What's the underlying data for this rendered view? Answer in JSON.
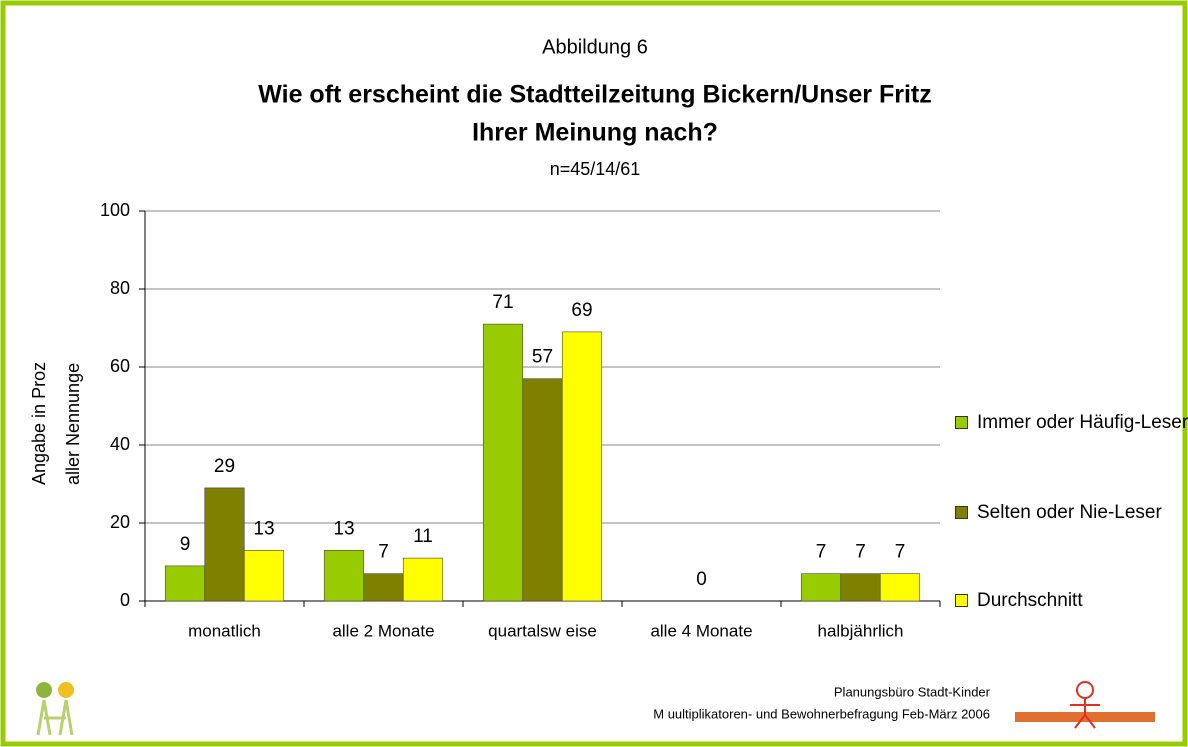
{
  "chart_data": {
    "type": "bar",
    "caption": "Abbildung 6",
    "title": [
      "Wie oft erscheint die Stadtteilzeitung Bickern/Unser Fritz",
      "Ihrer Meinung nach?"
    ],
    "subtitle": "n=45/14/61",
    "y_label": [
      "Angabe in Proz",
      "aller Nennunge"
    ],
    "categories": [
      "monatlich",
      "alle 2 Monate",
      "quartalsw eise",
      "alle 4 Monate",
      "halbjährlich"
    ],
    "series": [
      {
        "name": "Immer oder Häufig-Leser",
        "color": "#99cc00",
        "values": [
          9,
          13,
          71,
          null,
          7
        ]
      },
      {
        "name": "Selten oder Nie-Leser",
        "color": "#808000",
        "values": [
          29,
          7,
          57,
          0,
          7
        ]
      },
      {
        "name": "Durchschnitt",
        "color": "#ffff00",
        "values": [
          13,
          11,
          69,
          null,
          7
        ]
      }
    ],
    "ylim": [
      0,
      100
    ],
    "yticks": [
      0,
      20,
      40,
      60,
      80,
      100
    ],
    "grid": true,
    "legend": "right",
    "footer": [
      "Planungsbüro Stadt-Kinder",
      "M uultiplikatoren- und Bewohnerbefragung Feb-März 2006"
    ]
  }
}
